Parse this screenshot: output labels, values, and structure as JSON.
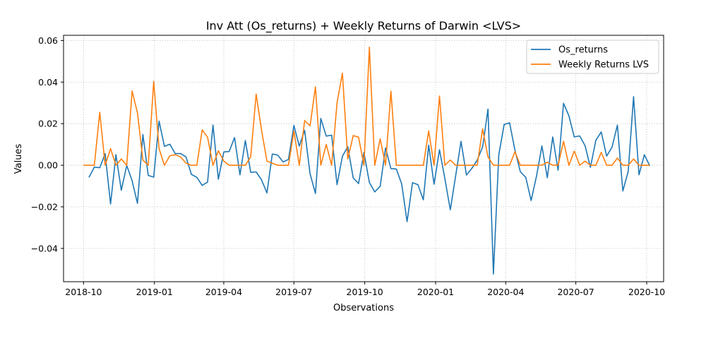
{
  "chart_data": {
    "type": "line",
    "title": "Inv Att (Os_returns) + Weekly Returns of Darwin <LVS>",
    "xlabel": "Observations",
    "ylabel": "Values",
    "x_range": [
      "2018-09-05",
      "2020-10-23"
    ],
    "ylim": [
      -0.056,
      0.0625
    ],
    "x_ticks": [
      "2018-10",
      "2019-01",
      "2019-04",
      "2019-07",
      "2019-10",
      "2020-01",
      "2020-04",
      "2020-07",
      "2020-10"
    ],
    "x_tick_dates": [
      "2018-10-01",
      "2019-01-01",
      "2019-04-01",
      "2019-07-01",
      "2019-10-01",
      "2020-01-01",
      "2020-04-01",
      "2020-07-01",
      "2020-10-01"
    ],
    "y_ticks": [
      0.06,
      0.04,
      0.02,
      0.0,
      -0.02,
      -0.04
    ],
    "y_tick_labels": [
      "0.06",
      "0.04",
      "0.02",
      "0.00",
      "−0.02",
      "−0.04"
    ],
    "grid": true,
    "legend_position": "upper right",
    "series": [
      {
        "name": "Os_returns",
        "color": "#1f77b4",
        "points": [
          [
            "2018-10-08",
            -0.0058
          ],
          [
            "2018-10-15",
            -0.0009
          ],
          [
            "2018-10-22",
            -0.0012
          ],
          [
            "2018-10-29",
            0.0056
          ],
          [
            "2018-11-05",
            -0.0186
          ],
          [
            "2018-11-12",
            0.0051
          ],
          [
            "2018-11-19",
            -0.012
          ],
          [
            "2018-11-26",
            -0.0001
          ],
          [
            "2018-12-03",
            -0.0074
          ],
          [
            "2018-12-10",
            -0.0183
          ],
          [
            "2018-12-17",
            0.0148
          ],
          [
            "2018-12-24",
            -0.0049
          ],
          [
            "2018-12-31",
            -0.0057
          ],
          [
            "2019-01-07",
            0.0212
          ],
          [
            "2019-01-14",
            0.0091
          ],
          [
            "2019-01-21",
            0.0101
          ],
          [
            "2019-01-28",
            0.0056
          ],
          [
            "2019-02-04",
            0.0056
          ],
          [
            "2019-02-11",
            0.004
          ],
          [
            "2019-02-18",
            -0.0044
          ],
          [
            "2019-02-25",
            -0.0058
          ],
          [
            "2019-03-04",
            -0.0097
          ],
          [
            "2019-03-11",
            -0.0081
          ],
          [
            "2019-03-18",
            0.0193
          ],
          [
            "2019-03-25",
            -0.0067
          ],
          [
            "2019-04-01",
            0.0064
          ],
          [
            "2019-04-08",
            0.0066
          ],
          [
            "2019-04-15",
            0.0133
          ],
          [
            "2019-04-22",
            -0.0046
          ],
          [
            "2019-04-29",
            0.0119
          ],
          [
            "2019-05-06",
            -0.0034
          ],
          [
            "2019-05-13",
            -0.0032
          ],
          [
            "2019-05-20",
            -0.007
          ],
          [
            "2019-05-27",
            -0.0133
          ],
          [
            "2019-06-03",
            0.0054
          ],
          [
            "2019-06-10",
            0.0049
          ],
          [
            "2019-06-17",
            0.0016
          ],
          [
            "2019-06-24",
            0.0028
          ],
          [
            "2019-07-01",
            0.0191
          ],
          [
            "2019-07-08",
            0.0092
          ],
          [
            "2019-07-15",
            0.0168
          ],
          [
            "2019-07-22",
            -0.0041
          ],
          [
            "2019-07-29",
            -0.0136
          ],
          [
            "2019-08-05",
            0.0225
          ],
          [
            "2019-08-12",
            0.014
          ],
          [
            "2019-08-19",
            0.0145
          ],
          [
            "2019-08-26",
            -0.0093
          ],
          [
            "2019-09-02",
            0.0043
          ],
          [
            "2019-09-09",
            0.009
          ],
          [
            "2019-09-16",
            -0.0061
          ],
          [
            "2019-09-23",
            -0.0088
          ],
          [
            "2019-09-30",
            0.0062
          ],
          [
            "2019-10-07",
            -0.0083
          ],
          [
            "2019-10-14",
            -0.0128
          ],
          [
            "2019-10-21",
            -0.0101
          ],
          [
            "2019-10-28",
            0.0083
          ],
          [
            "2019-11-04",
            -0.0016
          ],
          [
            "2019-11-11",
            -0.0018
          ],
          [
            "2019-11-18",
            -0.009
          ],
          [
            "2019-11-25",
            -0.0271
          ],
          [
            "2019-12-02",
            -0.0084
          ],
          [
            "2019-12-09",
            -0.0093
          ],
          [
            "2019-12-16",
            -0.0166
          ],
          [
            "2019-12-23",
            0.0097
          ],
          [
            "2019-12-30",
            -0.0091
          ],
          [
            "2020-01-06",
            0.0075
          ],
          [
            "2020-01-13",
            -0.0064
          ],
          [
            "2020-01-20",
            -0.0214
          ],
          [
            "2020-01-27",
            -0.0051
          ],
          [
            "2020-02-03",
            0.0115
          ],
          [
            "2020-02-10",
            -0.0047
          ],
          [
            "2020-02-17",
            -0.0015
          ],
          [
            "2020-02-24",
            0.0024
          ],
          [
            "2020-03-02",
            0.0088
          ],
          [
            "2020-03-09",
            0.027
          ],
          [
            "2020-03-16",
            -0.0523
          ],
          [
            "2020-03-23",
            0.005
          ],
          [
            "2020-03-30",
            0.0196
          ],
          [
            "2020-04-06",
            0.0204
          ],
          [
            "2020-04-13",
            0.0072
          ],
          [
            "2020-04-20",
            -0.0031
          ],
          [
            "2020-04-27",
            -0.0058
          ],
          [
            "2020-05-04",
            -0.017
          ],
          [
            "2020-05-11",
            -0.0051
          ],
          [
            "2020-05-18",
            0.0093
          ],
          [
            "2020-05-25",
            -0.006
          ],
          [
            "2020-06-01",
            0.0136
          ],
          [
            "2020-06-08",
            -0.0024
          ],
          [
            "2020-06-15",
            0.0298
          ],
          [
            "2020-06-22",
            0.0238
          ],
          [
            "2020-06-29",
            0.0136
          ],
          [
            "2020-07-06",
            0.0141
          ],
          [
            "2020-07-13",
            0.0094
          ],
          [
            "2020-07-20",
            -0.001
          ],
          [
            "2020-07-27",
            0.012
          ],
          [
            "2020-08-03",
            0.016
          ],
          [
            "2020-08-10",
            0.0044
          ],
          [
            "2020-08-17",
            0.0087
          ],
          [
            "2020-08-24",
            0.0193
          ],
          [
            "2020-08-31",
            -0.0124
          ],
          [
            "2020-09-07",
            -0.003
          ],
          [
            "2020-09-14",
            0.033
          ],
          [
            "2020-09-21",
            -0.0046
          ],
          [
            "2020-09-28",
            0.0051
          ],
          [
            "2020-10-05",
            -0.0003
          ]
        ]
      },
      {
        "name": "Weekly Returns LVS",
        "color": "#ff7f0e",
        "points": [
          [
            "2018-10-01",
            0.0
          ],
          [
            "2018-10-08",
            0.0
          ],
          [
            "2018-10-15",
            0.0
          ],
          [
            "2018-10-22",
            0.0255
          ],
          [
            "2018-10-29",
            0.0
          ],
          [
            "2018-11-05",
            0.008
          ],
          [
            "2018-11-12",
            0.0
          ],
          [
            "2018-11-19",
            0.003
          ],
          [
            "2018-11-26",
            0.0
          ],
          [
            "2018-12-03",
            0.0357
          ],
          [
            "2018-12-10",
            0.0252
          ],
          [
            "2018-12-17",
            0.0025
          ],
          [
            "2018-12-24",
            0.0
          ],
          [
            "2018-12-31",
            0.0403
          ],
          [
            "2019-01-07",
            0.008
          ],
          [
            "2019-01-14",
            0.0
          ],
          [
            "2019-01-21",
            0.0046
          ],
          [
            "2019-01-28",
            0.005
          ],
          [
            "2019-02-04",
            0.004
          ],
          [
            "2019-02-11",
            0.001
          ],
          [
            "2019-02-18",
            0.0
          ],
          [
            "2019-02-25",
            0.0
          ],
          [
            "2019-03-04",
            0.017
          ],
          [
            "2019-03-11",
            0.0135
          ],
          [
            "2019-03-18",
            0.0
          ],
          [
            "2019-03-25",
            0.007
          ],
          [
            "2019-04-01",
            0.002
          ],
          [
            "2019-04-08",
            0.0
          ],
          [
            "2019-04-15",
            0.0
          ],
          [
            "2019-04-22",
            0.0
          ],
          [
            "2019-04-29",
            0.0
          ],
          [
            "2019-05-06",
            0.004
          ],
          [
            "2019-05-13",
            0.0342
          ],
          [
            "2019-05-20",
            0.017
          ],
          [
            "2019-05-27",
            0.002
          ],
          [
            "2019-06-03",
            0.001
          ],
          [
            "2019-06-10",
            0.0
          ],
          [
            "2019-06-17",
            0.0
          ],
          [
            "2019-06-24",
            0.0
          ],
          [
            "2019-07-01",
            0.0165
          ],
          [
            "2019-07-08",
            0.0
          ],
          [
            "2019-07-15",
            0.0215
          ],
          [
            "2019-07-22",
            0.019
          ],
          [
            "2019-07-29",
            0.0377
          ],
          [
            "2019-08-05",
            0.0
          ],
          [
            "2019-08-12",
            0.01
          ],
          [
            "2019-08-19",
            0.0
          ],
          [
            "2019-08-26",
            0.03
          ],
          [
            "2019-09-02",
            0.0443
          ],
          [
            "2019-09-09",
            0.003
          ],
          [
            "2019-09-16",
            0.0143
          ],
          [
            "2019-09-23",
            0.0135
          ],
          [
            "2019-09-30",
            0.0
          ],
          [
            "2019-10-07",
            0.0568
          ],
          [
            "2019-10-14",
            0.0
          ],
          [
            "2019-10-21",
            0.0127
          ],
          [
            "2019-10-28",
            0.0
          ],
          [
            "2019-11-04",
            0.0356
          ],
          [
            "2019-11-11",
            0.0
          ],
          [
            "2019-11-18",
            0.0
          ],
          [
            "2019-11-25",
            0.0
          ],
          [
            "2019-12-02",
            0.0
          ],
          [
            "2019-12-09",
            0.0
          ],
          [
            "2019-12-16",
            0.0
          ],
          [
            "2019-12-23",
            0.0165
          ],
          [
            "2019-12-30",
            0.0
          ],
          [
            "2020-01-06",
            0.0333
          ],
          [
            "2020-01-13",
            0.0
          ],
          [
            "2020-01-20",
            0.0025
          ],
          [
            "2020-01-27",
            0.0
          ],
          [
            "2020-02-03",
            0.0
          ],
          [
            "2020-02-10",
            0.0
          ],
          [
            "2020-02-17",
            0.0
          ],
          [
            "2020-02-24",
            0.0
          ],
          [
            "2020-03-02",
            0.0175
          ],
          [
            "2020-03-09",
            0.004
          ],
          [
            "2020-03-16",
            0.0
          ],
          [
            "2020-03-23",
            0.0
          ],
          [
            "2020-03-30",
            0.0
          ],
          [
            "2020-04-06",
            0.0
          ],
          [
            "2020-04-13",
            0.0065
          ],
          [
            "2020-04-20",
            0.0
          ],
          [
            "2020-04-27",
            0.0
          ],
          [
            "2020-05-04",
            0.0
          ],
          [
            "2020-05-11",
            0.0
          ],
          [
            "2020-05-18",
            0.0
          ],
          [
            "2020-05-25",
            0.0015
          ],
          [
            "2020-06-01",
            0.0
          ],
          [
            "2020-06-08",
            0.0
          ],
          [
            "2020-06-15",
            0.0115
          ],
          [
            "2020-06-22",
            0.0
          ],
          [
            "2020-06-29",
            0.0068
          ],
          [
            "2020-07-06",
            0.0
          ],
          [
            "2020-07-13",
            0.002
          ],
          [
            "2020-07-20",
            0.0
          ],
          [
            "2020-07-27",
            0.0
          ],
          [
            "2020-08-03",
            0.0062
          ],
          [
            "2020-08-10",
            0.0
          ],
          [
            "2020-08-17",
            0.0
          ],
          [
            "2020-08-24",
            0.0035
          ],
          [
            "2020-08-31",
            0.0
          ],
          [
            "2020-09-07",
            0.0
          ],
          [
            "2020-09-14",
            0.003
          ],
          [
            "2020-09-21",
            0.0
          ],
          [
            "2020-09-28",
            0.0
          ],
          [
            "2020-10-05",
            0.0
          ]
        ]
      }
    ]
  }
}
